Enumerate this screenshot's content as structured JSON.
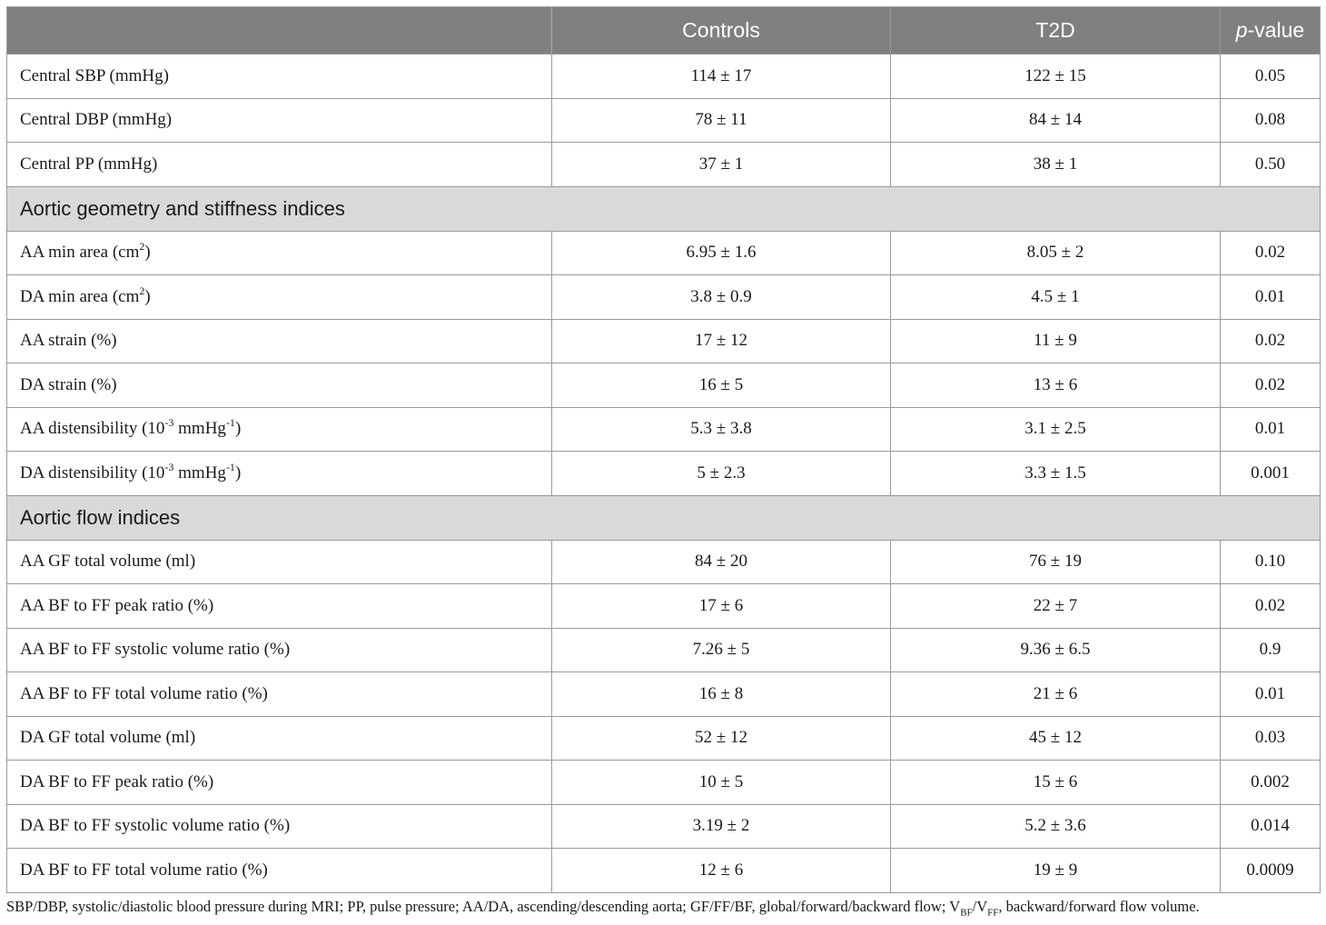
{
  "table": {
    "headers": {
      "label": "",
      "controls": "Controls",
      "t2d": "T2D",
      "p_italic": "p",
      "p_rest": "-value"
    },
    "rows": [
      {
        "kind": "data",
        "label": [
          "Central SBP (mmHg)"
        ],
        "controls": "114 ± 17",
        "t2d": "122 ± 15",
        "p": "0.05"
      },
      {
        "kind": "data",
        "label": [
          "Central DBP (mmHg)"
        ],
        "controls": "78 ± 11",
        "t2d": "84 ± 14",
        "p": "0.08"
      },
      {
        "kind": "data",
        "label": [
          "Central PP (mmHg)"
        ],
        "controls": "37 ± 1",
        "t2d": "38 ± 1",
        "p": "0.50"
      },
      {
        "kind": "section",
        "label": "Aortic geometry and stiffness indices"
      },
      {
        "kind": "data",
        "label": [
          "AA min area (cm",
          {
            "sup": "2"
          },
          ")"
        ],
        "controls": "6.95 ± 1.6",
        "t2d": "8.05 ± 2",
        "p": "0.02"
      },
      {
        "kind": "data",
        "label": [
          "DA min area (cm",
          {
            "sup": "2"
          },
          ")"
        ],
        "controls": "3.8 ± 0.9",
        "t2d": "4.5 ± 1",
        "p": "0.01"
      },
      {
        "kind": "data",
        "label": [
          "AA strain (%)"
        ],
        "controls": "17 ± 12",
        "t2d": "11 ± 9",
        "p": "0.02"
      },
      {
        "kind": "data",
        "label": [
          "DA strain (%)"
        ],
        "controls": "16 ± 5",
        "t2d": "13 ± 6",
        "p": "0.02"
      },
      {
        "kind": "data",
        "label": [
          "AA distensibility (10",
          {
            "sup": "-3"
          },
          " mmHg",
          {
            "sup": "-1"
          },
          ")"
        ],
        "controls": "5.3 ± 3.8",
        "t2d": "3.1 ± 2.5",
        "p": "0.01"
      },
      {
        "kind": "data",
        "label": [
          "DA distensibility (10",
          {
            "sup": "-3"
          },
          " mmHg",
          {
            "sup": "-1"
          },
          ")"
        ],
        "controls": "5 ± 2.3",
        "t2d": "3.3 ± 1.5",
        "p": "0.001"
      },
      {
        "kind": "section",
        "label": "Aortic flow indices"
      },
      {
        "kind": "data",
        "label": [
          "AA GF total volume (ml)"
        ],
        "controls": "84 ± 20",
        "t2d": "76 ± 19",
        "p": "0.10"
      },
      {
        "kind": "data",
        "label": [
          "AA BF to FF peak ratio (%)"
        ],
        "controls": "17 ± 6",
        "t2d": "22 ± 7",
        "p": "0.02"
      },
      {
        "kind": "data",
        "label": [
          "AA BF to FF systolic volume ratio (%)"
        ],
        "controls": "7.26 ± 5",
        "t2d": "9.36 ± 6.5",
        "p": "0.9"
      },
      {
        "kind": "data",
        "label": [
          "AA BF to FF total volume ratio (%)"
        ],
        "controls": "16 ± 8",
        "t2d": "21 ± 6",
        "p": "0.01"
      },
      {
        "kind": "data",
        "label": [
          "DA GF total volume (ml)"
        ],
        "controls": "52 ± 12",
        "t2d": "45 ± 12",
        "p": "0.03"
      },
      {
        "kind": "data",
        "label": [
          "DA BF to FF peak ratio (%)"
        ],
        "controls": "10 ± 5",
        "t2d": "15 ± 6",
        "p": "0.002"
      },
      {
        "kind": "data",
        "label": [
          "DA BF to FF systolic volume ratio (%)"
        ],
        "controls": "3.19 ± 2",
        "t2d": "5.2 ± 3.6",
        "p": "0.014"
      },
      {
        "kind": "data",
        "label": [
          "DA BF to FF total volume ratio (%)"
        ],
        "controls": "12 ± 6",
        "t2d": "19 ± 9",
        "p": "0.0009"
      }
    ]
  },
  "footnote": [
    "SBP/DBP, systolic/diastolic blood pressure during MRI; PP, pulse pressure; AA/DA, ascending/descending aorta; GF/FF/BF, global/forward/backward flow; V",
    {
      "sub": "BF"
    },
    "/V",
    {
      "sub": "FF"
    },
    ", backward/forward flow volume."
  ],
  "colors": {
    "header_bg": "#808080",
    "section_bg": "#d9d9d9",
    "border": "#9a9a9a"
  }
}
